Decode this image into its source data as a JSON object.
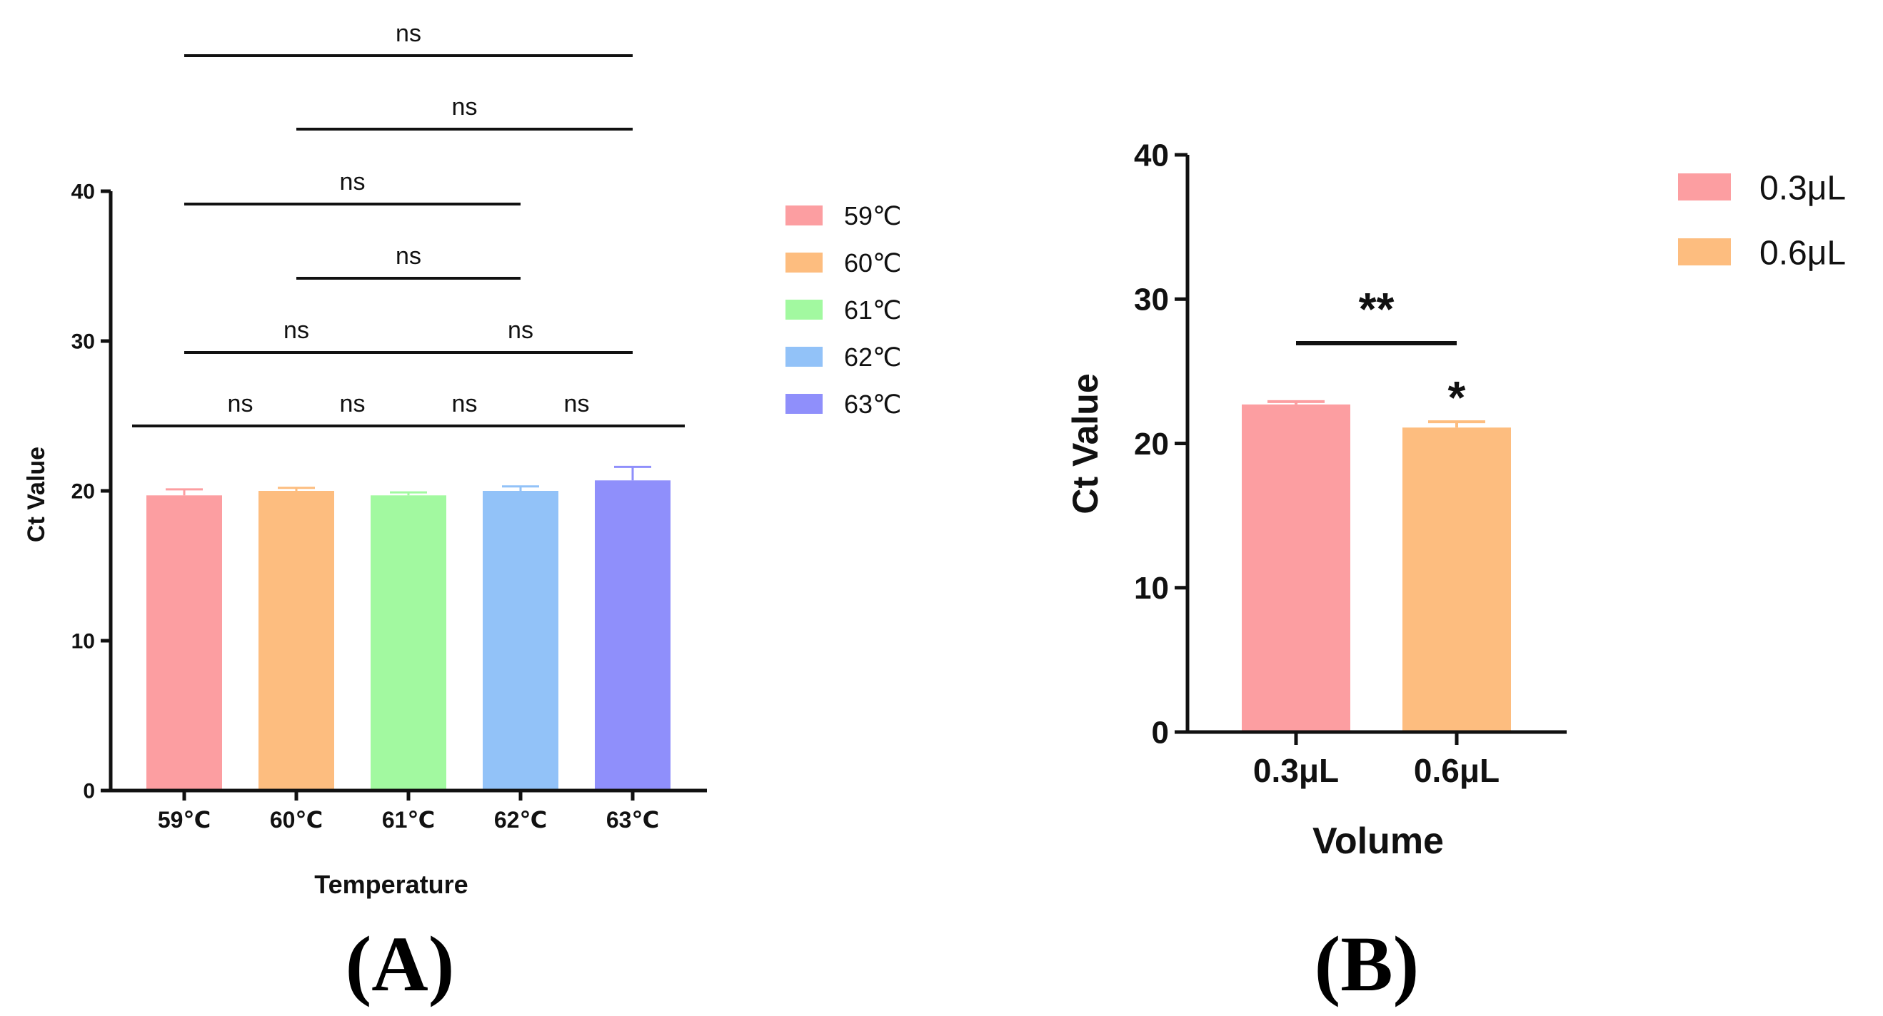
{
  "chart_data": [
    {
      "type": "bar",
      "panel_label": "(A)",
      "xlabel": "Temperature",
      "ylabel": "Ct Value",
      "ylim": [
        0,
        40
      ],
      "yticks": [
        0,
        10,
        20,
        30,
        40
      ],
      "categories": [
        "59℃",
        "60℃",
        "61℃",
        "62℃",
        "63℃"
      ],
      "values": [
        19.7,
        20.0,
        19.7,
        20.0,
        20.7
      ],
      "errors": [
        0.4,
        0.2,
        0.2,
        0.3,
        0.9
      ],
      "colors": [
        "#fc9ea1",
        "#fdbd7f",
        "#a2f9a0",
        "#92c2f8",
        "#8f8ffb"
      ],
      "legend": [
        {
          "label": "59℃",
          "color": "#fc9ea1"
        },
        {
          "label": "60℃",
          "color": "#fdbd7f"
        },
        {
          "label": "61℃",
          "color": "#a2f9a0"
        },
        {
          "label": "62℃",
          "color": "#92c2f8"
        },
        {
          "label": "63℃",
          "color": "#8f8ffb"
        }
      ],
      "legend_position": "right",
      "comparisons": [
        {
          "from": 0,
          "to": 4,
          "label": "ns"
        },
        {
          "from": 1,
          "to": 4,
          "label": "ns"
        },
        {
          "from": 0,
          "to": 3,
          "label": "ns"
        },
        {
          "from": 1,
          "to": 3,
          "label": "ns"
        },
        {
          "from": 0,
          "to": 2,
          "label": "ns"
        },
        {
          "from": 2,
          "to": 4,
          "label": "ns"
        },
        {
          "from": 0,
          "to": 1,
          "label": "ns"
        },
        {
          "from": 1,
          "to": 2,
          "label": "ns"
        },
        {
          "from": 2,
          "to": 3,
          "label": "ns"
        },
        {
          "from": 3,
          "to": 4,
          "label": "ns"
        }
      ]
    },
    {
      "type": "bar",
      "panel_label": "(B)",
      "xlabel": "Volume",
      "ylabel": "Ct Value",
      "ylim": [
        0,
        40
      ],
      "yticks": [
        0,
        10,
        20,
        30,
        40
      ],
      "categories": [
        "0.3μL",
        "0.6μL"
      ],
      "values": [
        22.7,
        21.1
      ],
      "errors": [
        0.2,
        0.4
      ],
      "colors": [
        "#fc9ea1",
        "#fdbd7f"
      ],
      "legend": [
        {
          "label": "0.3μL",
          "color": "#fc9ea1"
        },
        {
          "label": "0.6μL",
          "color": "#fdbd7f"
        }
      ],
      "legend_position": "top-right",
      "comparisons": [
        {
          "from": 0,
          "to": 1,
          "label": "**"
        }
      ],
      "bar_annotations": [
        {
          "index": 1,
          "label": "*"
        }
      ]
    }
  ]
}
